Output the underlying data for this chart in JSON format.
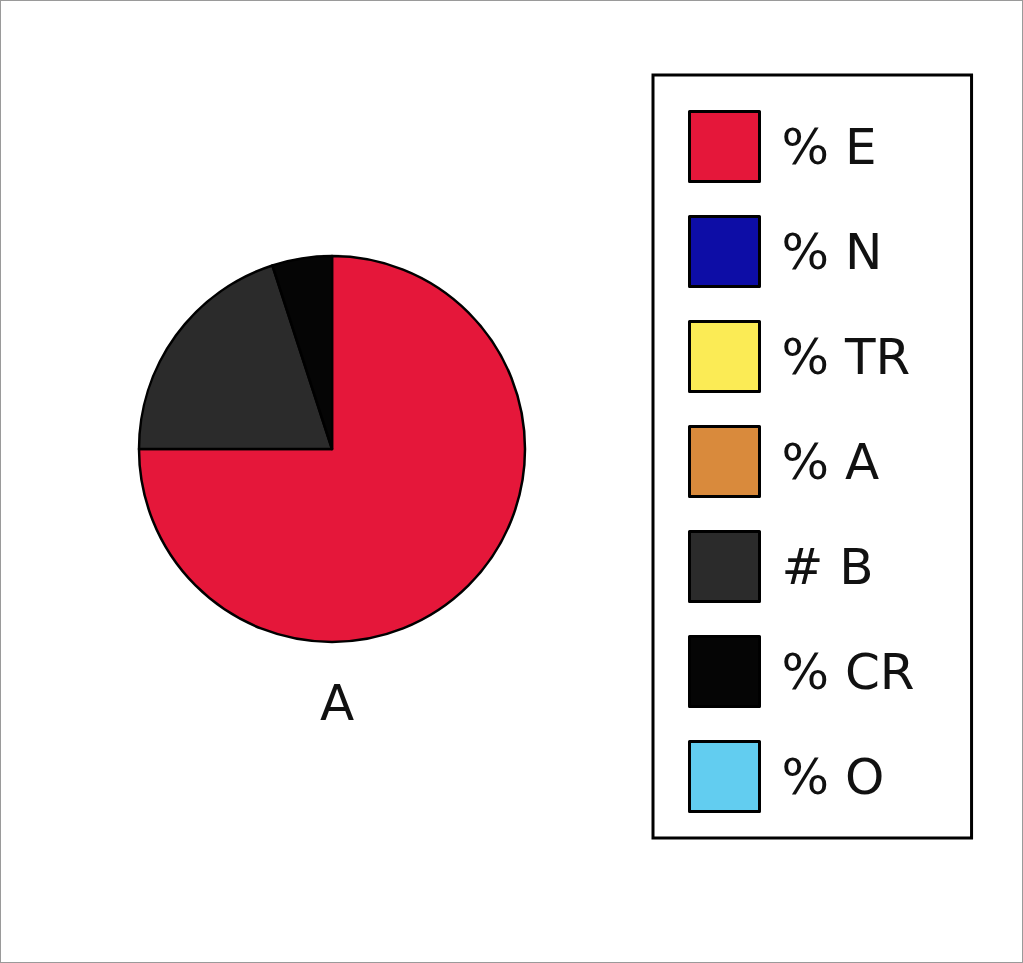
{
  "chart_data": {
    "type": "pie",
    "title": "A",
    "categories": [
      "% E",
      "% N",
      "% TR",
      "% A",
      "# B",
      "% CR",
      "% O"
    ],
    "values": [
      75,
      0,
      0,
      0,
      20,
      5,
      0
    ],
    "colors": [
      "#e5173a",
      "#0d0da6",
      "#fbeb55",
      "#d98a3c",
      "#2b2b2b",
      "#050505",
      "#62cdf0"
    ],
    "legend": "right"
  }
}
